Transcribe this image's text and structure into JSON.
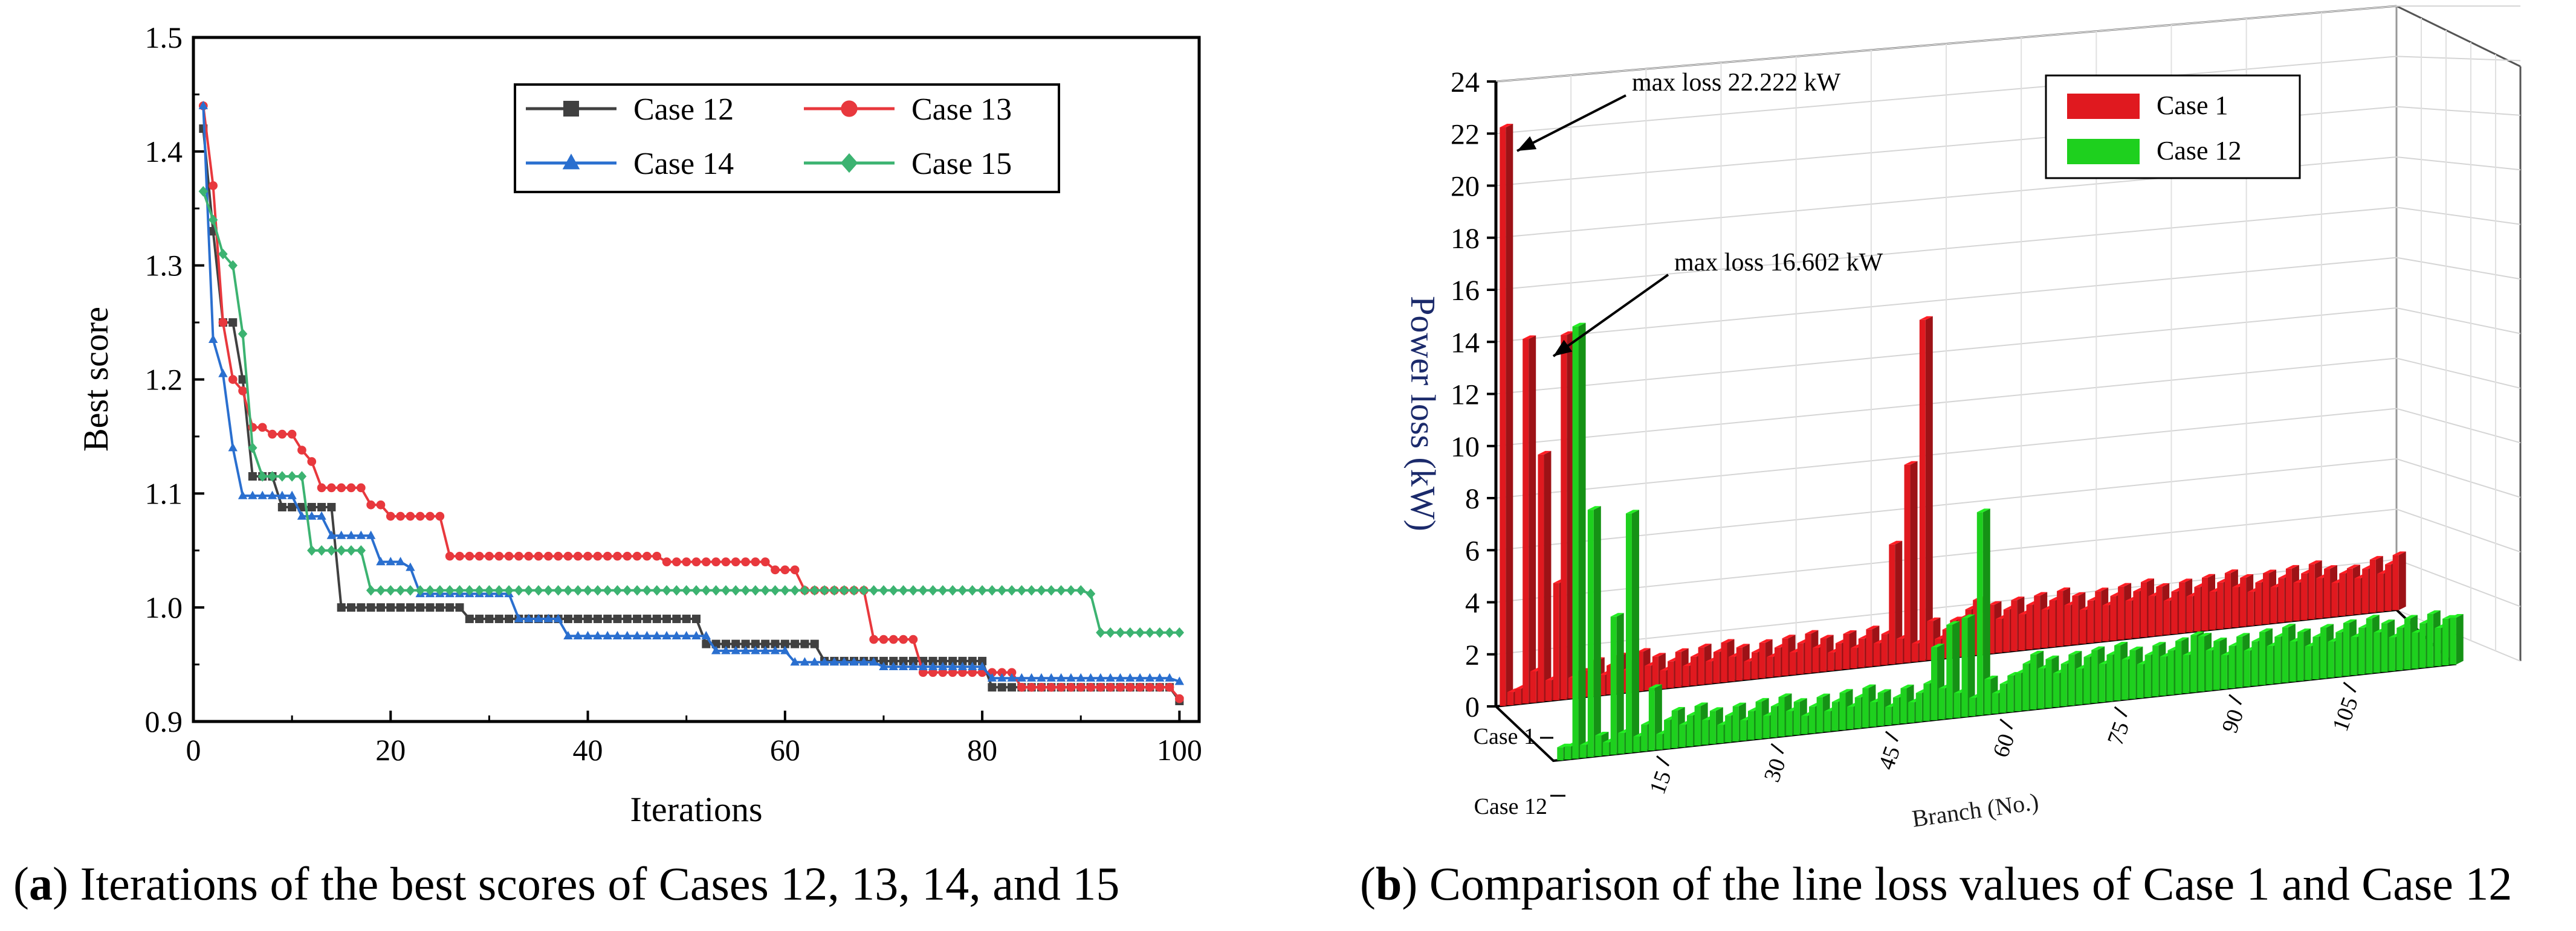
{
  "chart_data": [
    {
      "type": "line",
      "panel": "a",
      "caption_label": "a",
      "caption_text": " Iterations of the best scores of Cases 12, 13, 14, and 15",
      "xlabel": "Iterations",
      "ylabel": "Best score",
      "xlim": [
        0,
        102
      ],
      "ylim": [
        0.9,
        1.5
      ],
      "xticks": [
        "0",
        "20",
        "40",
        "60",
        "80",
        "100"
      ],
      "yticks": [
        "0.9",
        "1.0",
        "1.1",
        "1.2",
        "1.3",
        "1.4",
        "1.5"
      ],
      "xtick_values": [
        0,
        20,
        40,
        60,
        80,
        100
      ],
      "ytick_values": [
        0.9,
        1.0,
        1.1,
        1.2,
        1.3,
        1.4,
        1.5
      ],
      "legend_position": "top-right",
      "series": [
        {
          "name": "Case 12",
          "color": "#404040",
          "marker": "square",
          "points": [
            [
              1,
              1.42
            ],
            [
              2,
              1.33
            ],
            [
              3,
              1.25
            ],
            [
              5,
              1.2
            ],
            [
              6,
              1.115
            ],
            [
              9,
              1.088
            ],
            [
              14,
              1.088
            ],
            [
              15,
              1.0
            ],
            [
              27,
              1.0
            ],
            [
              28,
              0.99
            ],
            [
              51,
              0.99
            ],
            [
              52,
              0.968
            ],
            [
              63,
              0.968
            ],
            [
              64,
              0.953
            ],
            [
              80,
              0.953
            ],
            [
              81,
              0.93
            ],
            [
              100,
              0.918
            ]
          ]
        },
        {
          "name": "Case 13",
          "color": "#e8383d",
          "marker": "circle",
          "points": [
            [
              1,
              1.44
            ],
            [
              2,
              1.37
            ],
            [
              3,
              1.25
            ],
            [
              4,
              1.2
            ],
            [
              5,
              1.19
            ],
            [
              6,
              1.158
            ],
            [
              8,
              1.152
            ],
            [
              11,
              1.138
            ],
            [
              12,
              1.128
            ],
            [
              13,
              1.105
            ],
            [
              17,
              1.105
            ],
            [
              18,
              1.09
            ],
            [
              20,
              1.08
            ],
            [
              25,
              1.08
            ],
            [
              26,
              1.045
            ],
            [
              47,
              1.045
            ],
            [
              48,
              1.04
            ],
            [
              58,
              1.04
            ],
            [
              59,
              1.033
            ],
            [
              61,
              1.033
            ],
            [
              62,
              1.015
            ],
            [
              68,
              1.015
            ],
            [
              69,
              0.972
            ],
            [
              73,
              0.972
            ],
            [
              74,
              0.943
            ],
            [
              83,
              0.943
            ],
            [
              84,
              0.93
            ],
            [
              100,
              0.92
            ]
          ]
        },
        {
          "name": "Case 14",
          "color": "#2a6fcf",
          "marker": "triangle",
          "points": [
            [
              1,
              1.44
            ],
            [
              2,
              1.235
            ],
            [
              3,
              1.205
            ],
            [
              4,
              1.14
            ],
            [
              5,
              1.098
            ],
            [
              10,
              1.098
            ],
            [
              11,
              1.08
            ],
            [
              13,
              1.08
            ],
            [
              14,
              1.063
            ],
            [
              18,
              1.063
            ],
            [
              19,
              1.04
            ],
            [
              22,
              1.035
            ],
            [
              23,
              1.012
            ],
            [
              32,
              1.012
            ],
            [
              33,
              0.99
            ],
            [
              37,
              0.99
            ],
            [
              38,
              0.975
            ],
            [
              52,
              0.975
            ],
            [
              53,
              0.962
            ],
            [
              60,
              0.962
            ],
            [
              61,
              0.952
            ],
            [
              69,
              0.952
            ],
            [
              70,
              0.948
            ],
            [
              80,
              0.948
            ],
            [
              81,
              0.938
            ],
            [
              100,
              0.935
            ]
          ]
        },
        {
          "name": "Case 15",
          "color": "#3cb371",
          "marker": "diamond",
          "points": [
            [
              1,
              1.365
            ],
            [
              2,
              1.34
            ],
            [
              3,
              1.31
            ],
            [
              4,
              1.3
            ],
            [
              5,
              1.24
            ],
            [
              6,
              1.14
            ],
            [
              7,
              1.115
            ],
            [
              11,
              1.115
            ],
            [
              12,
              1.05
            ],
            [
              17,
              1.05
            ],
            [
              18,
              1.015
            ],
            [
              91,
              1.012
            ],
            [
              92,
              0.978
            ],
            [
              100,
              0.978
            ]
          ]
        }
      ]
    },
    {
      "type": "bar3d",
      "panel": "b",
      "caption_label": "b",
      "caption_text": " Comparison of the line loss values of Case 1 and Case 12",
      "zlabel": "Power loss (kW)",
      "xlabel": "Branch (No.)",
      "zlim": [
        0,
        24
      ],
      "zticks": [
        "0",
        "2",
        "4",
        "6",
        "8",
        "10",
        "12",
        "14",
        "16",
        "18",
        "20",
        "22",
        "24"
      ],
      "ztick_values": [
        0,
        2,
        4,
        6,
        8,
        10,
        12,
        14,
        16,
        18,
        20,
        22,
        24
      ],
      "branch_ticks": [
        "15",
        "30",
        "45",
        "60",
        "75",
        "90",
        "105"
      ],
      "branch_tick_values": [
        15,
        30,
        45,
        60,
        75,
        90,
        105
      ],
      "branch_count": 118,
      "legend_position": "top-right",
      "annotations": [
        {
          "text": "max loss 22.222 kW",
          "series": "Case 1",
          "branch": 1
        },
        {
          "text": "max loss 16.602 kW",
          "series": "Case 12",
          "branch": 3
        }
      ],
      "series": [
        {
          "name": "Case 1",
          "color": "#e0191f",
          "peaks": [
            [
              1,
              22.222
            ],
            [
              2,
              0.5
            ],
            [
              3,
              0.6
            ],
            [
              4,
              14.0
            ],
            [
              5,
              1.2
            ],
            [
              6,
              9.5
            ],
            [
              7,
              0.8
            ],
            [
              8,
              4.5
            ],
            [
              9,
              14.0
            ],
            [
              10,
              0.8
            ],
            [
              11,
              1.0
            ],
            [
              12,
              1.0
            ],
            [
              52,
              4.6
            ],
            [
              54,
              7.6
            ],
            [
              56,
              13.1
            ],
            [
              57,
              1.5
            ],
            [
              112,
              1.8
            ]
          ]
        },
        {
          "name": "Case 12",
          "color": "#1ed01e",
          "peaks": [
            [
              3,
              16.602
            ],
            [
              5,
              9.5
            ],
            [
              6,
              0.8
            ],
            [
              8,
              5.3
            ],
            [
              9,
              0.8
            ],
            [
              10,
              9.2
            ],
            [
              11,
              0.6
            ],
            [
              13,
              2.4
            ],
            [
              14,
              0.6
            ],
            [
              50,
              2.8
            ],
            [
              52,
              3.6
            ],
            [
              54,
              3.8
            ],
            [
              56,
              7.8
            ],
            [
              60,
              1.4
            ],
            [
              70,
              1.8
            ],
            [
              80,
              1.5
            ],
            [
              84,
              2.2
            ],
            [
              118,
              1.8
            ]
          ]
        }
      ]
    }
  ]
}
